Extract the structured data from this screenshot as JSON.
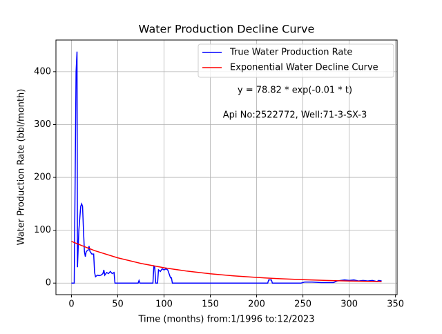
{
  "chart_data": {
    "type": "line",
    "title": "Water Production Decline Curve",
    "xlabel": "Time (months) from:1/1996 to:12/2023",
    "ylabel": "Water Production Rate (bbl/month)",
    "annotations": [
      "y = 78.82 * exp(-0.01 * t)",
      "Api No:2522772, Well:71-3-SX-3"
    ],
    "xlim": [
      -16.75,
      351.75
    ],
    "ylim": [
      -21.9,
      459.9
    ],
    "xticks": [
      0,
      50,
      100,
      150,
      200,
      250,
      300,
      350
    ],
    "yticks": [
      0,
      100,
      200,
      300,
      400
    ],
    "grid": true,
    "legend": "upper right",
    "series": [
      {
        "name": "True Water Production Rate",
        "color": "#0000ff",
        "x": [
          0,
          3,
          4,
          5,
          6,
          6.5,
          8,
          10,
          11,
          12,
          13,
          14,
          15,
          16,
          18,
          19,
          20,
          22,
          24,
          25,
          26,
          28,
          30,
          32,
          34,
          35,
          36,
          38,
          40,
          42,
          44,
          46,
          47,
          72,
          73,
          74,
          88,
          89,
          90,
          91,
          93,
          94,
          96,
          98,
          100,
          102,
          104,
          105,
          107,
          108,
          109,
          212,
          213,
          216,
          217,
          248,
          252,
          260,
          270,
          283,
          287,
          295,
          300,
          305,
          310,
          315,
          320,
          325,
          330,
          332,
          335
        ],
        "values": [
          0,
          0,
          200,
          400,
          438,
          30,
          100,
          145,
          150,
          145,
          100,
          60,
          50,
          60,
          62,
          70,
          60,
          55,
          55,
          20,
          12,
          15,
          14,
          15,
          18,
          25,
          15,
          20,
          18,
          22,
          18,
          20,
          0,
          0,
          5,
          0,
          0,
          32,
          30,
          0,
          0,
          25,
          22,
          27,
          25,
          27,
          25,
          20,
          10,
          10,
          0,
          0,
          6,
          6,
          0,
          0,
          2,
          2,
          1,
          1,
          4,
          6,
          5,
          6,
          4,
          5,
          4,
          5,
          3,
          5,
          4
        ]
      },
      {
        "name": "Exponential Water Decline Curve",
        "color": "#ff0000",
        "x": [
          0,
          25,
          50,
          75,
          100,
          125,
          150,
          175,
          200,
          225,
          250,
          275,
          300,
          325,
          335
        ],
        "values": [
          78.82,
          61.39,
          47.81,
          37.23,
          29.0,
          22.58,
          17.59,
          13.7,
          10.67,
          8.31,
          6.47,
          5.04,
          3.92,
          3.06,
          2.77
        ]
      }
    ]
  }
}
